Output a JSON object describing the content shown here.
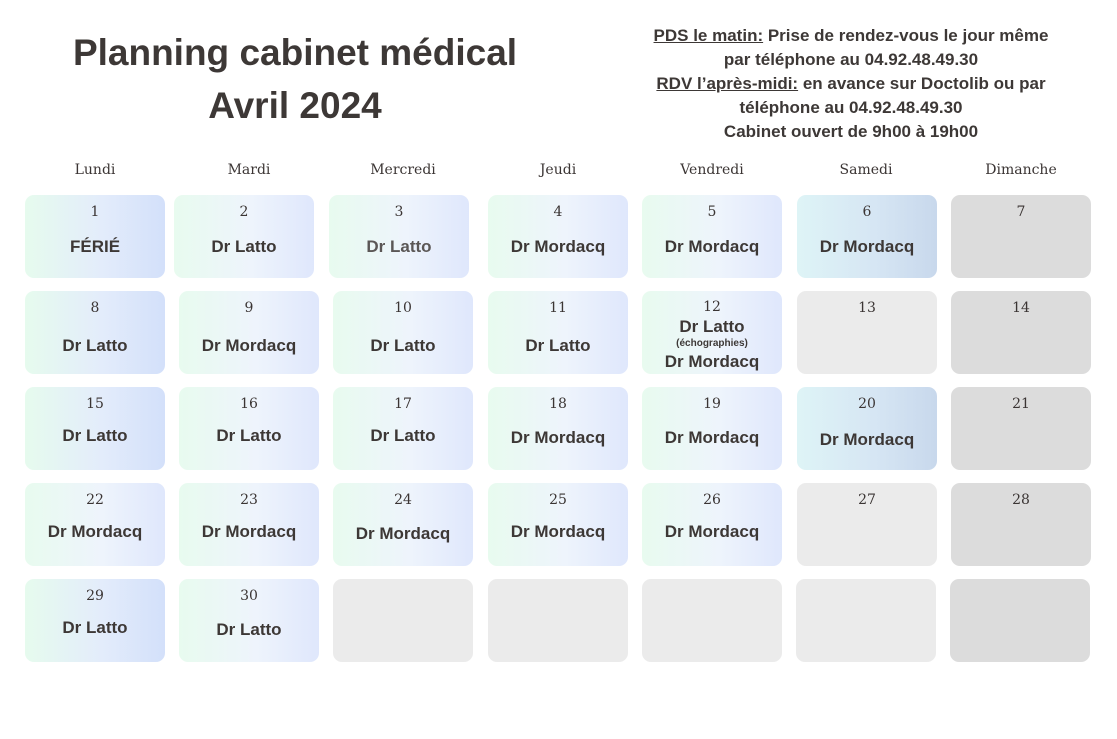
{
  "header": {
    "title_line1": "Planning cabinet médical",
    "title_line2": "Avril 2024"
  },
  "info": {
    "pds_label": "PDS le matin:",
    "pds_text": " Prise de rendez-vous le jour même",
    "pds_line2": "par téléphone au 04.92.48.49.30",
    "rdv_label": "RDV l’après-midi:",
    "rdv_text": " en avance sur Doctolib ou par",
    "rdv_line2": "téléphone au 04.92.48.49.30",
    "hours": "Cabinet ouvert de 9h00 à 19h00"
  },
  "weekdays": [
    "Lundi",
    "Mardi",
    "Mercredi",
    "Jeudi",
    "Vendredi",
    "Samedi",
    "Dimanche"
  ],
  "days": [
    {
      "num": "1",
      "doctor": "FÉRIÉ"
    },
    {
      "num": "2",
      "doctor": "Dr Latto"
    },
    {
      "num": "3",
      "doctor": "Dr Latto"
    },
    {
      "num": "4",
      "doctor": "Dr Mordacq"
    },
    {
      "num": "5",
      "doctor": "Dr Mordacq"
    },
    {
      "num": "6",
      "doctor": "Dr Mordacq"
    },
    {
      "num": "7",
      "doctor": ""
    },
    {
      "num": "8",
      "doctor": "Dr Latto"
    },
    {
      "num": "9",
      "doctor": "Dr Mordacq"
    },
    {
      "num": "10",
      "doctor": "Dr Latto"
    },
    {
      "num": "11",
      "doctor": "Dr Latto"
    },
    {
      "num": "12",
      "doctor": "Dr Latto",
      "note": "(échographies)",
      "doctor2": "Dr Mordacq"
    },
    {
      "num": "13",
      "doctor": ""
    },
    {
      "num": "14",
      "doctor": ""
    },
    {
      "num": "15",
      "doctor": "Dr Latto"
    },
    {
      "num": "16",
      "doctor": "Dr Latto"
    },
    {
      "num": "17",
      "doctor": "Dr Latto"
    },
    {
      "num": "18",
      "doctor": "Dr Mordacq"
    },
    {
      "num": "19",
      "doctor": "Dr Mordacq"
    },
    {
      "num": "20",
      "doctor": "Dr Mordacq"
    },
    {
      "num": "21",
      "doctor": ""
    },
    {
      "num": "22",
      "doctor": "Dr Mordacq"
    },
    {
      "num": "23",
      "doctor": "Dr Mordacq"
    },
    {
      "num": "24",
      "doctor": "Dr Mordacq"
    },
    {
      "num": "25",
      "doctor": "Dr Mordacq"
    },
    {
      "num": "26",
      "doctor": "Dr Mordacq"
    },
    {
      "num": "27",
      "doctor": ""
    },
    {
      "num": "28",
      "doctor": ""
    },
    {
      "num": "29",
      "doctor": "Dr Latto"
    },
    {
      "num": "30",
      "doctor": "Dr Latto"
    }
  ]
}
